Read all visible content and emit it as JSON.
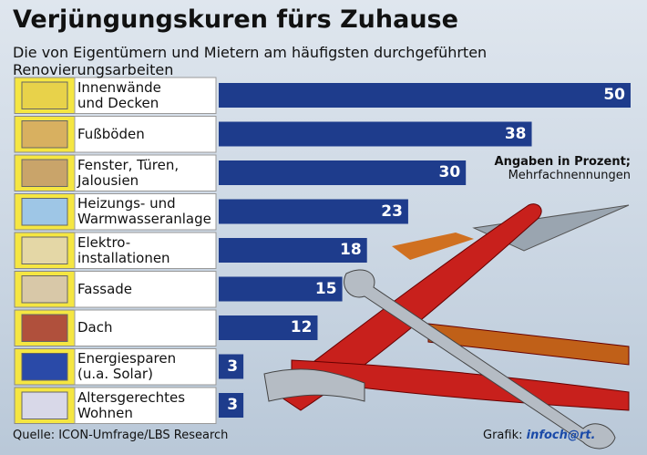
{
  "chart_data": {
    "type": "bar",
    "title": "Verjüngungskuren fürs Zuhause",
    "subtitle": "Die von Eigentümern und Mietern am häufigsten durchgeführten Renovierungsarbeiten",
    "categories": [
      "Innenwände\nund Decken",
      "Fußböden",
      "Fenster, Türen,\nJalousien",
      "Heizungs- und\nWarmwasseranlage",
      "Elektro-\ninstallationen",
      "Fassade",
      "Dach",
      "Energiesparen\n(u.a. Solar)",
      "Altersgerechtes\nWohnen"
    ],
    "values": [
      50,
      38,
      30,
      23,
      18,
      15,
      12,
      3,
      3
    ],
    "color": "#1e3c8c",
    "note_bold": "Angaben in Prozent;",
    "note": "Mehrfachnennungen",
    "source": "Quelle: ICON-Umfrage/LBS Research",
    "credit_label": "Grafik:",
    "credit_brand": "infoch@rt."
  }
}
